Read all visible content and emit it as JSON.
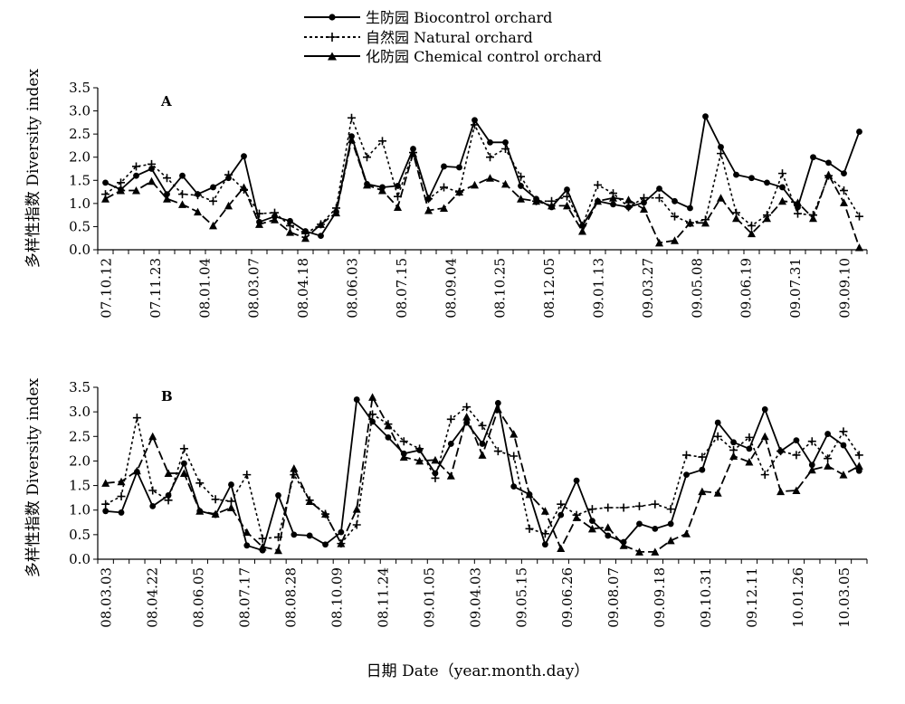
{
  "figure": {
    "legend": [
      {
        "key": "bio",
        "label": "生防园 Biocontrol orchard",
        "line": "solid",
        "marker": "circle"
      },
      {
        "key": "nat",
        "label": "自然园 Natural orchard",
        "line": "dotted",
        "marker": "plus"
      },
      {
        "key": "chem",
        "label": "化防园 Chemical control orchard",
        "line": "solid",
        "marker": "triangle"
      }
    ],
    "xlabel": "日期 Date（year.month.day）",
    "ylabel": "多样性指数 Diversity index"
  },
  "chart_data": [
    {
      "type": "line",
      "panel": "A",
      "ylabel": "多样性指数 Diversity index",
      "ylim": [
        0,
        3.5
      ],
      "yticks": [
        "0.0",
        "0.5",
        "1.0",
        "1.5",
        "2.0",
        "2.5",
        "3.0",
        "3.5"
      ],
      "x_tick_labels": [
        "07.10.12",
        "07.11.23",
        "08.01.04",
        "08.03.07",
        "08.04.18",
        "08.06.03",
        "08.07.15",
        "08.09.04",
        "08.10.25",
        "08.12.05",
        "09.01.13",
        "09.03.27",
        "09.05.08",
        "09.06.19",
        "09.07.31",
        "09.09.10"
      ],
      "legend_position": "top-center",
      "series": [
        {
          "name": "生防园 Biocontrol orchard",
          "values": [
            1.45,
            1.3,
            1.6,
            1.75,
            1.2,
            1.6,
            1.2,
            1.35,
            1.55,
            2.02,
            0.6,
            0.72,
            0.62,
            0.4,
            0.3,
            0.82,
            2.45,
            1.42,
            1.35,
            1.38,
            2.18,
            1.1,
            1.8,
            1.78,
            2.8,
            2.32,
            2.32,
            1.38,
            1.1,
            0.92,
            1.3,
            0.52,
            1.05,
            0.98,
            0.92,
            1.02,
            1.32,
            1.05,
            0.9,
            2.88,
            2.22,
            1.62,
            1.55,
            1.45,
            1.35,
            0.92,
            2.0,
            1.88,
            1.65,
            2.55
          ]
        },
        {
          "name": "自然园 Natural orchard",
          "values": [
            1.2,
            1.45,
            1.8,
            1.85,
            1.55,
            1.2,
            1.18,
            1.05,
            1.62,
            1.3,
            0.78,
            0.8,
            0.52,
            0.35,
            0.55,
            0.9,
            2.85,
            2.0,
            2.35,
            1.15,
            2.1,
            1.1,
            1.35,
            1.25,
            2.7,
            2.0,
            2.18,
            1.58,
            1.05,
            1.05,
            1.15,
            0.52,
            1.4,
            1.22,
            0.92,
            1.12,
            1.12,
            0.72,
            0.58,
            0.65,
            2.08,
            0.8,
            0.52,
            0.75,
            1.65,
            0.78,
            0.75,
            1.6,
            1.28,
            0.72
          ]
        },
        {
          "name": "化防园 Chemical control orchard",
          "values": [
            1.1,
            1.28,
            1.28,
            1.48,
            1.1,
            0.98,
            0.82,
            0.52,
            0.95,
            1.35,
            0.55,
            0.65,
            0.38,
            0.25,
            0.55,
            0.8,
            2.38,
            1.4,
            1.28,
            0.92,
            2.08,
            0.85,
            0.9,
            1.25,
            1.4,
            1.55,
            1.42,
            1.1,
            1.05,
            0.95,
            0.95,
            0.4,
            1.05,
            1.12,
            1.08,
            0.88,
            0.15,
            0.2,
            0.58,
            0.58,
            1.12,
            0.68,
            0.35,
            0.68,
            1.05,
            1.02,
            0.68,
            1.62,
            1.02,
            0.05
          ]
        }
      ]
    },
    {
      "type": "line",
      "panel": "B",
      "ylabel": "多样性指数 Diversity index",
      "ylim": [
        0,
        3.5
      ],
      "yticks": [
        "0.0",
        "0.5",
        "1.0",
        "1.5",
        "2.0",
        "2.5",
        "3.0",
        "3.5"
      ],
      "x_tick_labels": [
        "08.03.03",
        "08.04.22",
        "08.06.05",
        "08.07.17",
        "08.08.28",
        "08.10.09",
        "08.11.24",
        "09.01.05",
        "09.04.03",
        "09.05.15",
        "09.06.26",
        "09.08.07",
        "09.09.18",
        "09.10.31",
        "09.12.11",
        "10.01.26",
        "10.03.05"
      ],
      "series": [
        {
          "name": "生防园 Biocontrol orchard",
          "values": [
            0.98,
            0.95,
            1.78,
            1.08,
            1.3,
            1.95,
            0.98,
            0.9,
            1.52,
            0.28,
            0.18,
            1.3,
            0.5,
            0.48,
            0.3,
            0.55,
            3.25,
            2.8,
            2.48,
            2.15,
            2.22,
            1.75,
            2.35,
            2.78,
            2.35,
            3.18,
            1.48,
            1.32,
            0.3,
            0.9,
            1.6,
            0.78,
            0.48,
            0.35,
            0.72,
            0.62,
            0.72,
            1.72,
            1.82,
            2.78,
            2.38,
            2.25,
            3.05,
            2.2,
            2.42,
            1.92,
            2.55,
            2.32,
            1.8
          ]
        },
        {
          "name": "自然园 Natural orchard",
          "values": [
            1.12,
            1.28,
            2.88,
            1.4,
            1.2,
            2.25,
            1.55,
            1.22,
            1.18,
            1.72,
            0.42,
            0.45,
            1.72,
            1.2,
            0.92,
            0.32,
            0.7,
            2.95,
            2.75,
            2.4,
            2.25,
            1.65,
            2.85,
            3.1,
            2.72,
            2.2,
            2.1,
            0.62,
            0.52,
            1.12,
            0.9,
            1.02,
            1.05,
            1.05,
            1.08,
            1.12,
            1.02,
            2.12,
            2.08,
            2.5,
            2.22,
            2.48,
            1.72,
            2.2,
            2.12,
            2.4,
            2.05,
            2.6,
            2.12
          ]
        },
        {
          "name": "化防园 Chemical control orchard",
          "values": [
            1.55,
            1.58,
            1.8,
            2.5,
            1.75,
            1.75,
            0.98,
            0.92,
            1.05,
            0.55,
            0.25,
            0.18,
            1.85,
            1.18,
            0.92,
            0.32,
            1.02,
            3.3,
            2.72,
            2.08,
            2.0,
            2.02,
            1.7,
            2.9,
            2.12,
            3.05,
            2.55,
            1.32,
            0.98,
            0.22,
            0.85,
            0.62,
            0.65,
            0.28,
            0.15,
            0.15,
            0.38,
            0.52,
            1.38,
            1.35,
            2.1,
            1.98,
            2.5,
            1.38,
            1.4,
            1.82,
            1.9,
            1.72,
            1.9
          ]
        }
      ]
    }
  ]
}
